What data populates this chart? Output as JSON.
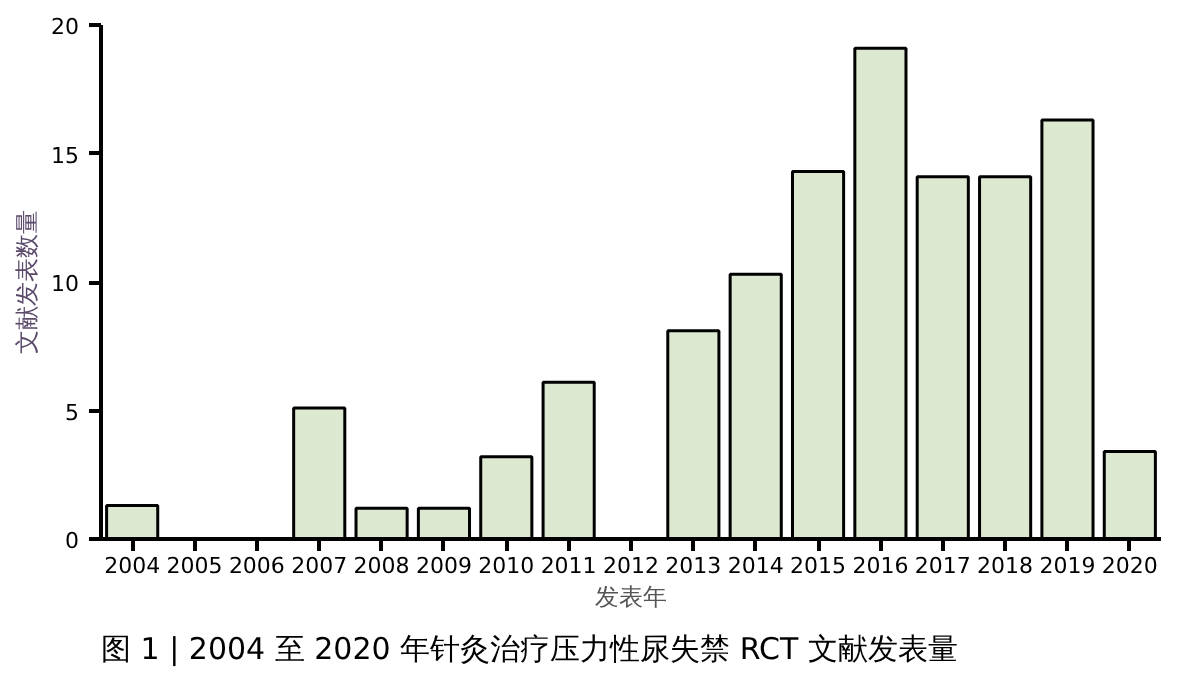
{
  "chart_data": {
    "type": "bar",
    "title": "图 1 | 2004 至 2020 年针灸治疗压力性尿失禁 RCT 文献发表量",
    "xlabel": "发表年",
    "ylabel": "文献发表数量",
    "categories": [
      "2004",
      "2005",
      "2006",
      "2007",
      "2008",
      "2009",
      "2010",
      "2011",
      "2012",
      "2013",
      "2014",
      "2015",
      "2016",
      "2017",
      "2018",
      "2019",
      "2020"
    ],
    "values": [
      1.3,
      0,
      0,
      5.1,
      1.2,
      1.2,
      3.2,
      6.1,
      0,
      8.1,
      10.3,
      14.3,
      19.1,
      14.1,
      14.1,
      16.3,
      3.4
    ],
    "color": "#dce9d0",
    "ylim": [
      0,
      20
    ],
    "yticks": [
      0,
      5,
      10,
      15,
      20
    ],
    "grid": false
  }
}
